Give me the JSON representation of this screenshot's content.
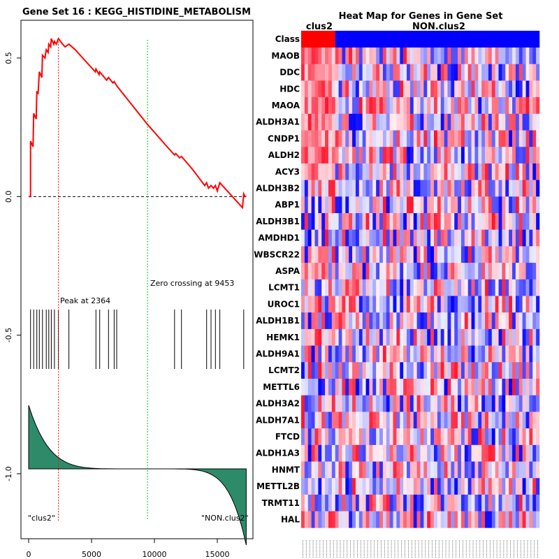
{
  "chart_data": [
    {
      "type": "line",
      "title": "Gene Set  16 : KEGG_HISTIDINE_METABOLISM",
      "xlim": [
        0,
        17500
      ],
      "ylim": [
        -1.15,
        0.62
      ],
      "xticks": [
        0,
        5000,
        10000,
        15000
      ],
      "yticks": [
        0.5,
        0.0,
        -0.5,
        -1.0
      ],
      "ytick_labels": [
        "0.5",
        "0.0",
        "-0.5",
        "-1.0"
      ],
      "series": [
        {
          "name": "running enrichment score",
          "color": "#ff0000",
          "points": [
            [
              0,
              0.0
            ],
            [
              150,
              0.0
            ],
            [
              150,
              0.2
            ],
            [
              350,
              0.18
            ],
            [
              400,
              0.3
            ],
            [
              600,
              0.28
            ],
            [
              650,
              0.38
            ],
            [
              750,
              0.37
            ],
            [
              850,
              0.45
            ],
            [
              1050,
              0.43
            ],
            [
              1100,
              0.51
            ],
            [
              1300,
              0.5
            ],
            [
              1400,
              0.53
            ],
            [
              1550,
              0.52
            ],
            [
              1600,
              0.55
            ],
            [
              1750,
              0.54
            ],
            [
              1800,
              0.57
            ],
            [
              2000,
              0.55
            ],
            [
              2050,
              0.56
            ],
            [
              2200,
              0.55
            ],
            [
              2364,
              0.57
            ],
            [
              2700,
              0.55
            ],
            [
              2900,
              0.54
            ],
            [
              3200,
              0.55
            ],
            [
              3700,
              0.53
            ],
            [
              4500,
              0.49
            ],
            [
              5300,
              0.45
            ],
            [
              5350,
              0.46
            ],
            [
              5600,
              0.44
            ],
            [
              5650,
              0.45
            ],
            [
              6200,
              0.42
            ],
            [
              6350,
              0.43
            ],
            [
              6700,
              0.41
            ],
            [
              6800,
              0.415
            ],
            [
              7000,
              0.4
            ],
            [
              9453,
              0.26
            ],
            [
              11000,
              0.18
            ],
            [
              11600,
              0.15
            ],
            [
              11700,
              0.155
            ],
            [
              12000,
              0.14
            ],
            [
              12150,
              0.145
            ],
            [
              13000,
              0.1
            ],
            [
              14000,
              0.04
            ],
            [
              14150,
              0.05
            ],
            [
              14300,
              0.03
            ],
            [
              14500,
              0.04
            ],
            [
              14700,
              0.03
            ],
            [
              14850,
              0.04
            ],
            [
              15000,
              0.02
            ],
            [
              15200,
              0.05
            ],
            [
              15600,
              0.03
            ],
            [
              17000,
              -0.04
            ],
            [
              17100,
              0.01
            ],
            [
              17200,
              0.0
            ],
            [
              17300,
              0.0
            ]
          ]
        }
      ],
      "baseline": 0.0,
      "hits": [
        150,
        400,
        650,
        850,
        1100,
        1400,
        1600,
        1800,
        2050,
        2364,
        3200,
        5350,
        5650,
        6350,
        6800,
        7000,
        11600,
        12150,
        14150,
        14500,
        14850,
        15200,
        17100
      ],
      "peak": {
        "x": 2364,
        "label": "Peak at 2364",
        "color": "#ff0000"
      },
      "zero_crossing": {
        "x": 9453,
        "label": "Zero crossing at 9453",
        "color": "#00cc00"
      },
      "ranked_metric": {
        "start": 0.2,
        "end": -0.42,
        "color": "#2e8b6a"
      },
      "left_label": "\"clus2\"",
      "right_label": "\"NON.clus2\""
    },
    {
      "type": "heatmap",
      "title": "Heat Map for Genes in Gene Set",
      "class_label": "Class",
      "classes": [
        {
          "name": "clus2",
          "count": 10,
          "color": "#ff0000"
        },
        {
          "name": "NON.clus2",
          "count": 60,
          "color": "#0000ff"
        }
      ],
      "genes": [
        "MAOB",
        "DDC",
        "HDC",
        "MAOA",
        "ALDH3A1",
        "CNDP1",
        "ALDH2",
        "ACY3",
        "ALDH3B2",
        "ABP1",
        "ALDH3B1",
        "AMDHD1",
        "WBSCR22",
        "ASPA",
        "LCMT1",
        "UROC1",
        "ALDH1B1",
        "HEMK1",
        "ALDH9A1",
        "LCMT2",
        "METTL6",
        "ALDH3A2",
        "ALDH7A1",
        "FTCD",
        "ALDH1A3",
        "HNMT",
        "METTL2B",
        "TRMT11",
        "HAL"
      ],
      "n_samples": 70,
      "value_range": [
        -1,
        1
      ],
      "seed": 16
    }
  ]
}
